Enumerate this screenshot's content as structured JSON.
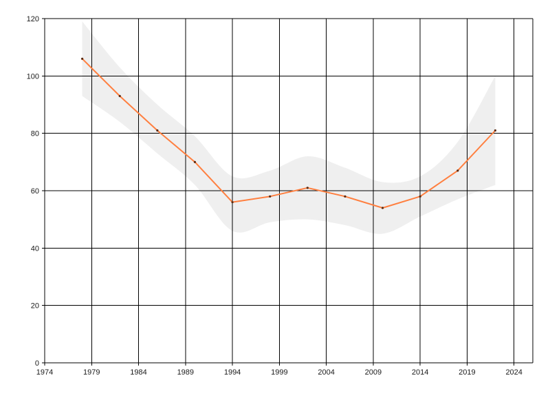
{
  "chart_data": {
    "type": "line",
    "title": "",
    "xlabel": "",
    "ylabel": "",
    "grid": true,
    "xlim": [
      1974,
      2026
    ],
    "ylim": [
      0,
      120
    ],
    "x_ticks": [
      1974,
      1979,
      1984,
      1989,
      1994,
      1999,
      2004,
      2009,
      2014,
      2019,
      2024
    ],
    "y_ticks": [
      0,
      20,
      40,
      60,
      80,
      100,
      120
    ],
    "series": [
      {
        "values": [
          {
            "x": 1978,
            "y": 106
          },
          {
            "x": 1982,
            "y": 93
          },
          {
            "x": 1986,
            "y": 81
          },
          {
            "x": 1990,
            "y": 70
          },
          {
            "x": 1994,
            "y": 56
          },
          {
            "x": 1998,
            "y": 58
          },
          {
            "x": 2002,
            "y": 61
          },
          {
            "x": 2006,
            "y": 58
          },
          {
            "x": 2010,
            "y": 54
          },
          {
            "x": 2014,
            "y": 58
          },
          {
            "x": 2018,
            "y": 67
          },
          {
            "x": 2022,
            "y": 81
          }
        ],
        "color": "#ff7f3f"
      }
    ],
    "band": {
      "color": "#efefef",
      "upper": [
        {
          "x": 1978,
          "y": 119
        },
        {
          "x": 1982,
          "y": 103
        },
        {
          "x": 1986,
          "y": 90
        },
        {
          "x": 1990,
          "y": 79
        },
        {
          "x": 1994,
          "y": 65
        },
        {
          "x": 1998,
          "y": 67
        },
        {
          "x": 2002,
          "y": 72
        },
        {
          "x": 2006,
          "y": 68
        },
        {
          "x": 2010,
          "y": 63
        },
        {
          "x": 2014,
          "y": 65
        },
        {
          "x": 2018,
          "y": 77
        },
        {
          "x": 2022,
          "y": 100
        }
      ],
      "lower": [
        {
          "x": 1978,
          "y": 93
        },
        {
          "x": 1982,
          "y": 84
        },
        {
          "x": 1986,
          "y": 73
        },
        {
          "x": 1990,
          "y": 62
        },
        {
          "x": 1994,
          "y": 46
        },
        {
          "x": 1998,
          "y": 49
        },
        {
          "x": 2002,
          "y": 50
        },
        {
          "x": 2006,
          "y": 48
        },
        {
          "x": 2010,
          "y": 45
        },
        {
          "x": 2014,
          "y": 51
        },
        {
          "x": 2018,
          "y": 57
        },
        {
          "x": 2022,
          "y": 62
        }
      ]
    }
  }
}
